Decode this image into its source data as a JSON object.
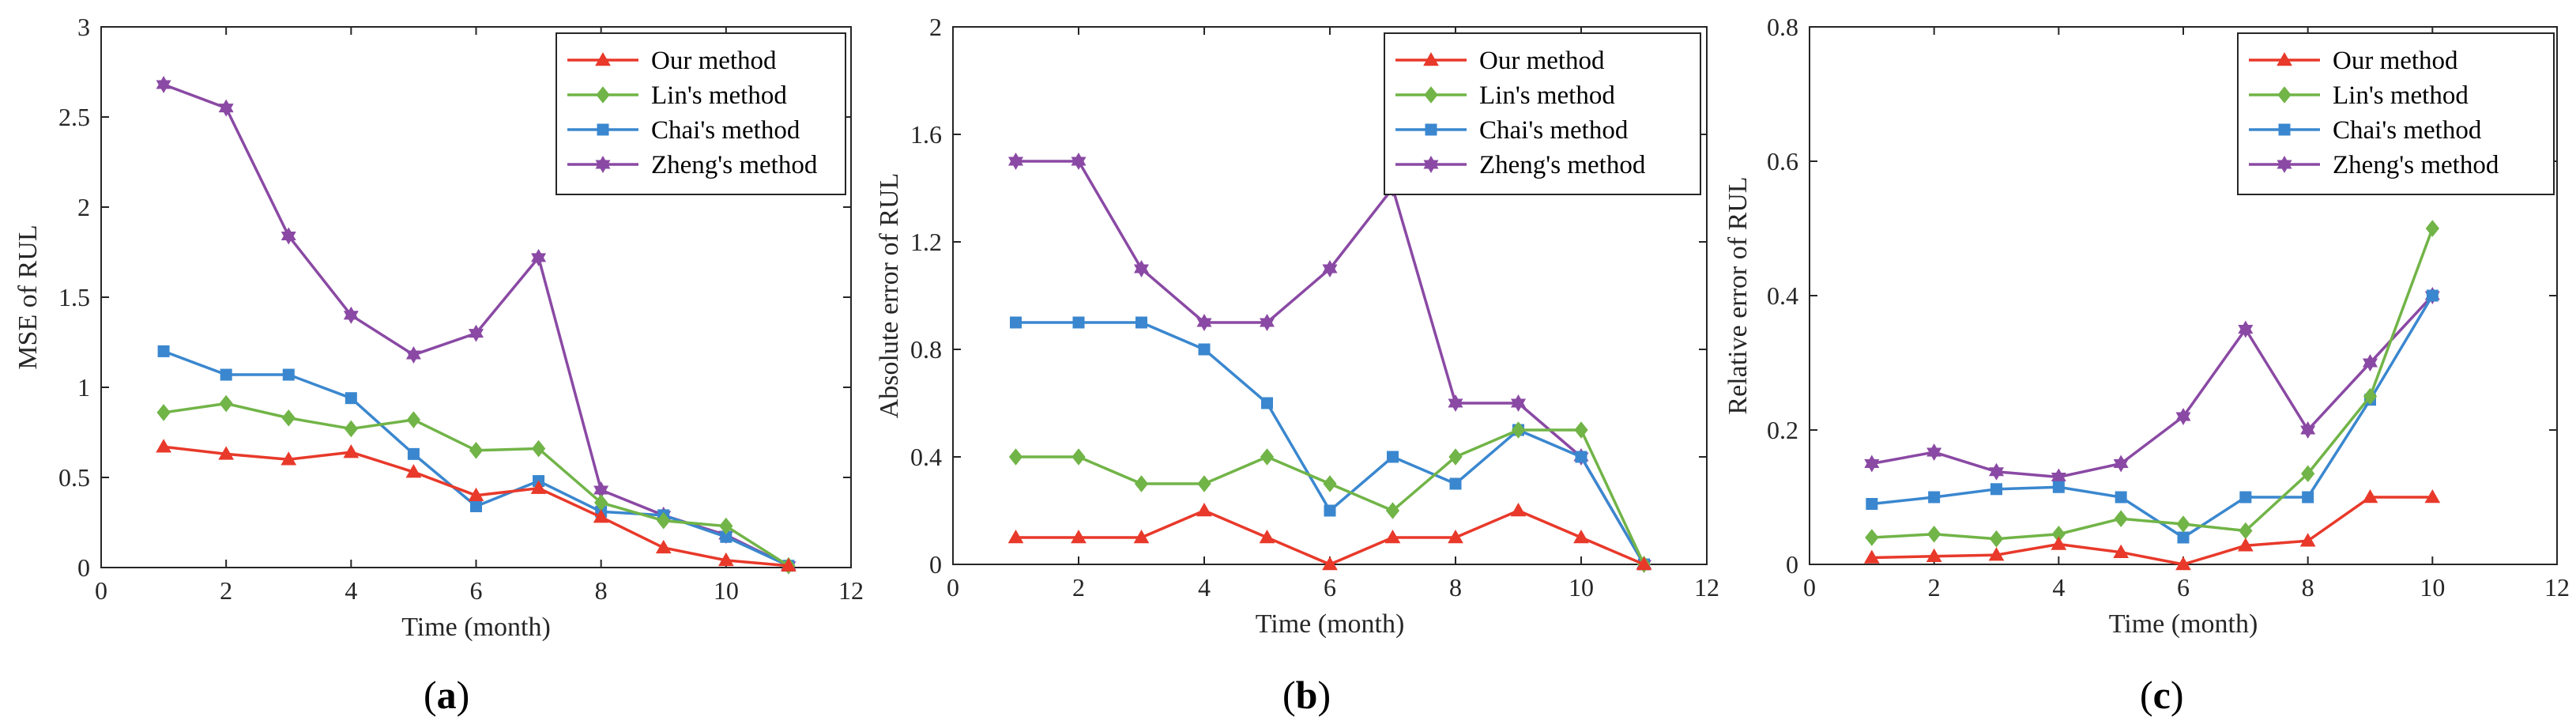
{
  "colors": {
    "our": "#e8392a",
    "lin": "#71b447",
    "chai": "#3a87cf",
    "zheng": "#8a49a4",
    "axis": "#262626"
  },
  "chart_data": [
    {
      "type": "line",
      "panel_label": "a",
      "panel_open": "(",
      "panel_close": ")",
      "xlabel": "Time (month)",
      "ylabel": "MSE of RUL",
      "xlim": [
        0,
        12
      ],
      "ylim": [
        0,
        3
      ],
      "xticks": [
        0,
        2,
        4,
        6,
        8,
        10,
        12
      ],
      "xtick_labels": [
        "0",
        "2",
        "4",
        "6",
        "8",
        "10",
        "12"
      ],
      "yticks": [
        0,
        0.5,
        1,
        1.5,
        2,
        2.5,
        3
      ],
      "ytick_labels": [
        "0",
        "0.5",
        "1",
        "1.5",
        "2",
        "2.5",
        "3"
      ],
      "legend_position": "top-right",
      "x": [
        1,
        2,
        3,
        4,
        5,
        6,
        7,
        8,
        9,
        10,
        11
      ],
      "series": [
        {
          "name": "Our method",
          "key": "our",
          "marker": "triangle",
          "values": [
            0.67,
            0.63,
            0.6,
            0.64,
            0.53,
            0.4,
            0.44,
            0.28,
            0.11,
            0.04,
            0.01
          ]
        },
        {
          "name": "Lin's method",
          "key": "lin",
          "marker": "diamond",
          "values": [
            0.86,
            0.91,
            0.83,
            0.77,
            0.82,
            0.65,
            0.66,
            0.36,
            0.26,
            0.23,
            0.01
          ]
        },
        {
          "name": "Chai's method",
          "key": "chai",
          "marker": "square",
          "values": [
            1.2,
            1.07,
            1.07,
            0.94,
            0.63,
            0.34,
            0.48,
            0.31,
            0.29,
            0.17,
            0.01
          ]
        },
        {
          "name": "Zheng's method",
          "key": "zheng",
          "marker": "star",
          "values": [
            2.68,
            2.55,
            1.84,
            1.4,
            1.18,
            1.3,
            1.72,
            0.43,
            0.29,
            0.18,
            0.01
          ]
        }
      ]
    },
    {
      "type": "line",
      "panel_label": "b",
      "panel_open": "(",
      "panel_close": ")",
      "xlabel": "Time (month)",
      "ylabel": "Absolute error of RUL",
      "xlim": [
        0,
        12
      ],
      "ylim": [
        0,
        2
      ],
      "xticks": [
        0,
        2,
        4,
        6,
        8,
        10,
        12
      ],
      "xtick_labels": [
        "0",
        "2",
        "4",
        "6",
        "8",
        "10",
        "12"
      ],
      "yticks": [
        0,
        0.4,
        0.8,
        1.2,
        1.6,
        2
      ],
      "ytick_labels": [
        "0",
        "0.4",
        "0.8",
        "1.2",
        "1.6",
        "2"
      ],
      "legend_position": "top-right",
      "x": [
        1,
        2,
        3,
        4,
        5,
        6,
        7,
        8,
        9,
        10,
        11
      ],
      "series": [
        {
          "name": "Our method",
          "key": "our",
          "marker": "triangle",
          "values": [
            0.1,
            0.1,
            0.1,
            0.2,
            0.1,
            0.0,
            0.1,
            0.1,
            0.2,
            0.1,
            0.0
          ]
        },
        {
          "name": "Lin's method",
          "key": "lin",
          "marker": "diamond",
          "values": [
            0.4,
            0.4,
            0.3,
            0.3,
            0.4,
            0.3,
            0.2,
            0.4,
            0.5,
            0.5,
            0.0
          ]
        },
        {
          "name": "Chai's method",
          "key": "chai",
          "marker": "square",
          "values": [
            0.9,
            0.9,
            0.9,
            0.8,
            0.6,
            0.2,
            0.4,
            0.3,
            0.5,
            0.4,
            0.0
          ]
        },
        {
          "name": "Zheng's method",
          "key": "zheng",
          "marker": "star",
          "values": [
            1.5,
            1.5,
            1.1,
            0.9,
            0.9,
            1.1,
            1.4,
            0.6,
            0.6,
            0.4,
            0.0
          ]
        }
      ]
    },
    {
      "type": "line",
      "panel_label": "c",
      "panel_open": "(",
      "panel_close": ")",
      "xlabel": "Time (month)",
      "ylabel": "Relative error of RUL",
      "xlim": [
        0,
        12
      ],
      "ylim": [
        0,
        0.8
      ],
      "xticks": [
        0,
        2,
        4,
        6,
        8,
        10,
        12
      ],
      "xtick_labels": [
        "0",
        "2",
        "4",
        "6",
        "8",
        "10",
        "12"
      ],
      "yticks": [
        0,
        0.2,
        0.4,
        0.6,
        0.8
      ],
      "ytick_labels": [
        "0",
        "0.2",
        "0.4",
        "0.6",
        "0.8"
      ],
      "legend_position": "top-right",
      "x": [
        1,
        2,
        3,
        4,
        5,
        6,
        7,
        8,
        9,
        10
      ],
      "series": [
        {
          "name": "Our method",
          "key": "our",
          "marker": "triangle",
          "values": [
            0.01,
            0.012,
            0.014,
            0.03,
            0.018,
            0.0,
            0.028,
            0.035,
            0.1,
            0.1
          ]
        },
        {
          "name": "Lin's method",
          "key": "lin",
          "marker": "diamond",
          "values": [
            0.04,
            0.045,
            0.038,
            0.045,
            0.068,
            0.06,
            0.05,
            0.135,
            0.25,
            0.5
          ]
        },
        {
          "name": "Chai's method",
          "key": "chai",
          "marker": "square",
          "values": [
            0.09,
            0.1,
            0.112,
            0.115,
            0.1,
            0.04,
            0.1,
            0.1,
            0.245,
            0.4
          ]
        },
        {
          "name": "Zheng's method",
          "key": "zheng",
          "marker": "star",
          "values": [
            0.15,
            0.167,
            0.138,
            0.13,
            0.15,
            0.22,
            0.35,
            0.2,
            0.3,
            0.4
          ]
        }
      ]
    }
  ]
}
